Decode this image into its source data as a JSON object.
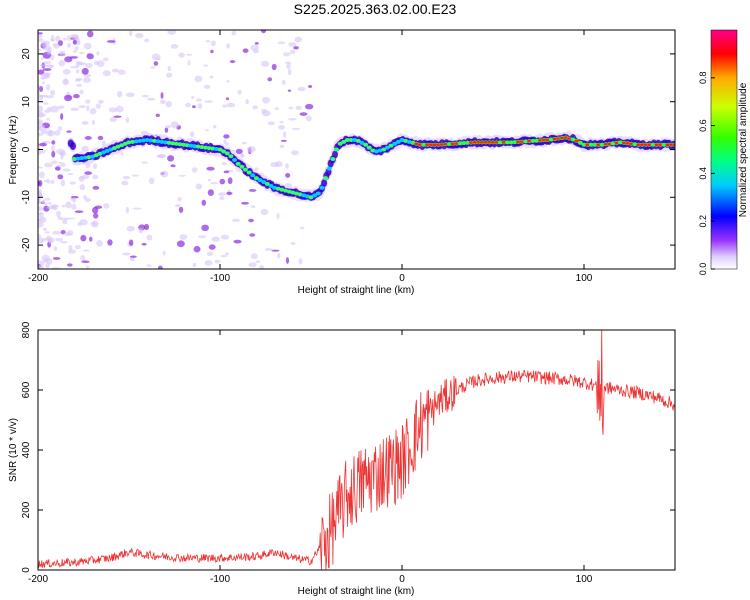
{
  "title": "S225.2025.363.02.00.E23",
  "colors": {
    "snr_line": "#ee3333",
    "axis": "#000000",
    "background": "#ffffff"
  },
  "chart_data": [
    {
      "type": "heatmap",
      "name": "spectrogram",
      "xlabel": "Height of straight line (km)",
      "ylabel": "Frequency (Hz)",
      "xlim": [
        -200,
        150
      ],
      "ylim": [
        -25,
        25
      ],
      "xticks": [
        -200,
        -100,
        0,
        100
      ],
      "yticks": [
        -20,
        -10,
        0,
        10,
        20
      ],
      "description_ridge": [
        [
          -180,
          -2
        ],
        [
          -170,
          -1.5
        ],
        [
          -160,
          0
        ],
        [
          -150,
          1.5
        ],
        [
          -140,
          2
        ],
        [
          -130,
          1.5
        ],
        [
          -120,
          1
        ],
        [
          -110,
          0.5
        ],
        [
          -100,
          0
        ],
        [
          -95,
          -1
        ],
        [
          -90,
          -3
        ],
        [
          -85,
          -4.5
        ],
        [
          -80,
          -6
        ],
        [
          -75,
          -7
        ],
        [
          -70,
          -8
        ],
        [
          -65,
          -8.5
        ],
        [
          -60,
          -9
        ],
        [
          -55,
          -9.5
        ],
        [
          -50,
          -10
        ],
        [
          -45,
          -9
        ],
        [
          -40,
          -4
        ],
        [
          -35,
          1
        ],
        [
          -30,
          2
        ],
        [
          -25,
          2
        ],
        [
          -20,
          1
        ],
        [
          -15,
          -0.5
        ],
        [
          -10,
          0
        ],
        [
          -5,
          1
        ],
        [
          0,
          2
        ],
        [
          10,
          1
        ],
        [
          20,
          1
        ],
        [
          40,
          1.5
        ],
        [
          60,
          1.5
        ],
        [
          80,
          2
        ],
        [
          90,
          2.5
        ],
        [
          95,
          2
        ],
        [
          100,
          1
        ],
        [
          110,
          1
        ],
        [
          120,
          1.5
        ],
        [
          130,
          1
        ],
        [
          150,
          1
        ]
      ],
      "colorbar": {
        "label": "Normalized spectral amplitude",
        "ticks": [
          "0.0",
          "0.2",
          "0.4",
          "0.6",
          "0.8"
        ],
        "range": [
          0,
          1
        ]
      }
    },
    {
      "type": "line",
      "name": "snr",
      "xlabel": "Height of straight line (km)",
      "ylabel": "SNR (10 * v/v)",
      "xlim": [
        -200,
        150
      ],
      "ylim": [
        0,
        800
      ],
      "xticks": [
        -200,
        -100,
        0,
        100
      ],
      "yticks": [
        0,
        200,
        400,
        600,
        800
      ],
      "trend": [
        [
          -200,
          20
        ],
        [
          -180,
          25
        ],
        [
          -160,
          40
        ],
        [
          -150,
          60
        ],
        [
          -140,
          50
        ],
        [
          -120,
          40
        ],
        [
          -100,
          40
        ],
        [
          -80,
          45
        ],
        [
          -70,
          60
        ],
        [
          -60,
          40
        ],
        [
          -50,
          30
        ],
        [
          -40,
          120
        ],
        [
          -30,
          250
        ],
        [
          -20,
          300
        ],
        [
          -10,
          330
        ],
        [
          0,
          360
        ],
        [
          5,
          420
        ],
        [
          10,
          480
        ],
        [
          20,
          560
        ],
        [
          30,
          600
        ],
        [
          40,
          630
        ],
        [
          50,
          640
        ],
        [
          60,
          645
        ],
        [
          70,
          645
        ],
        [
          80,
          640
        ],
        [
          90,
          635
        ],
        [
          100,
          625
        ],
        [
          110,
          610
        ],
        [
          120,
          600
        ],
        [
          130,
          590
        ],
        [
          140,
          575
        ],
        [
          150,
          550
        ]
      ]
    }
  ]
}
